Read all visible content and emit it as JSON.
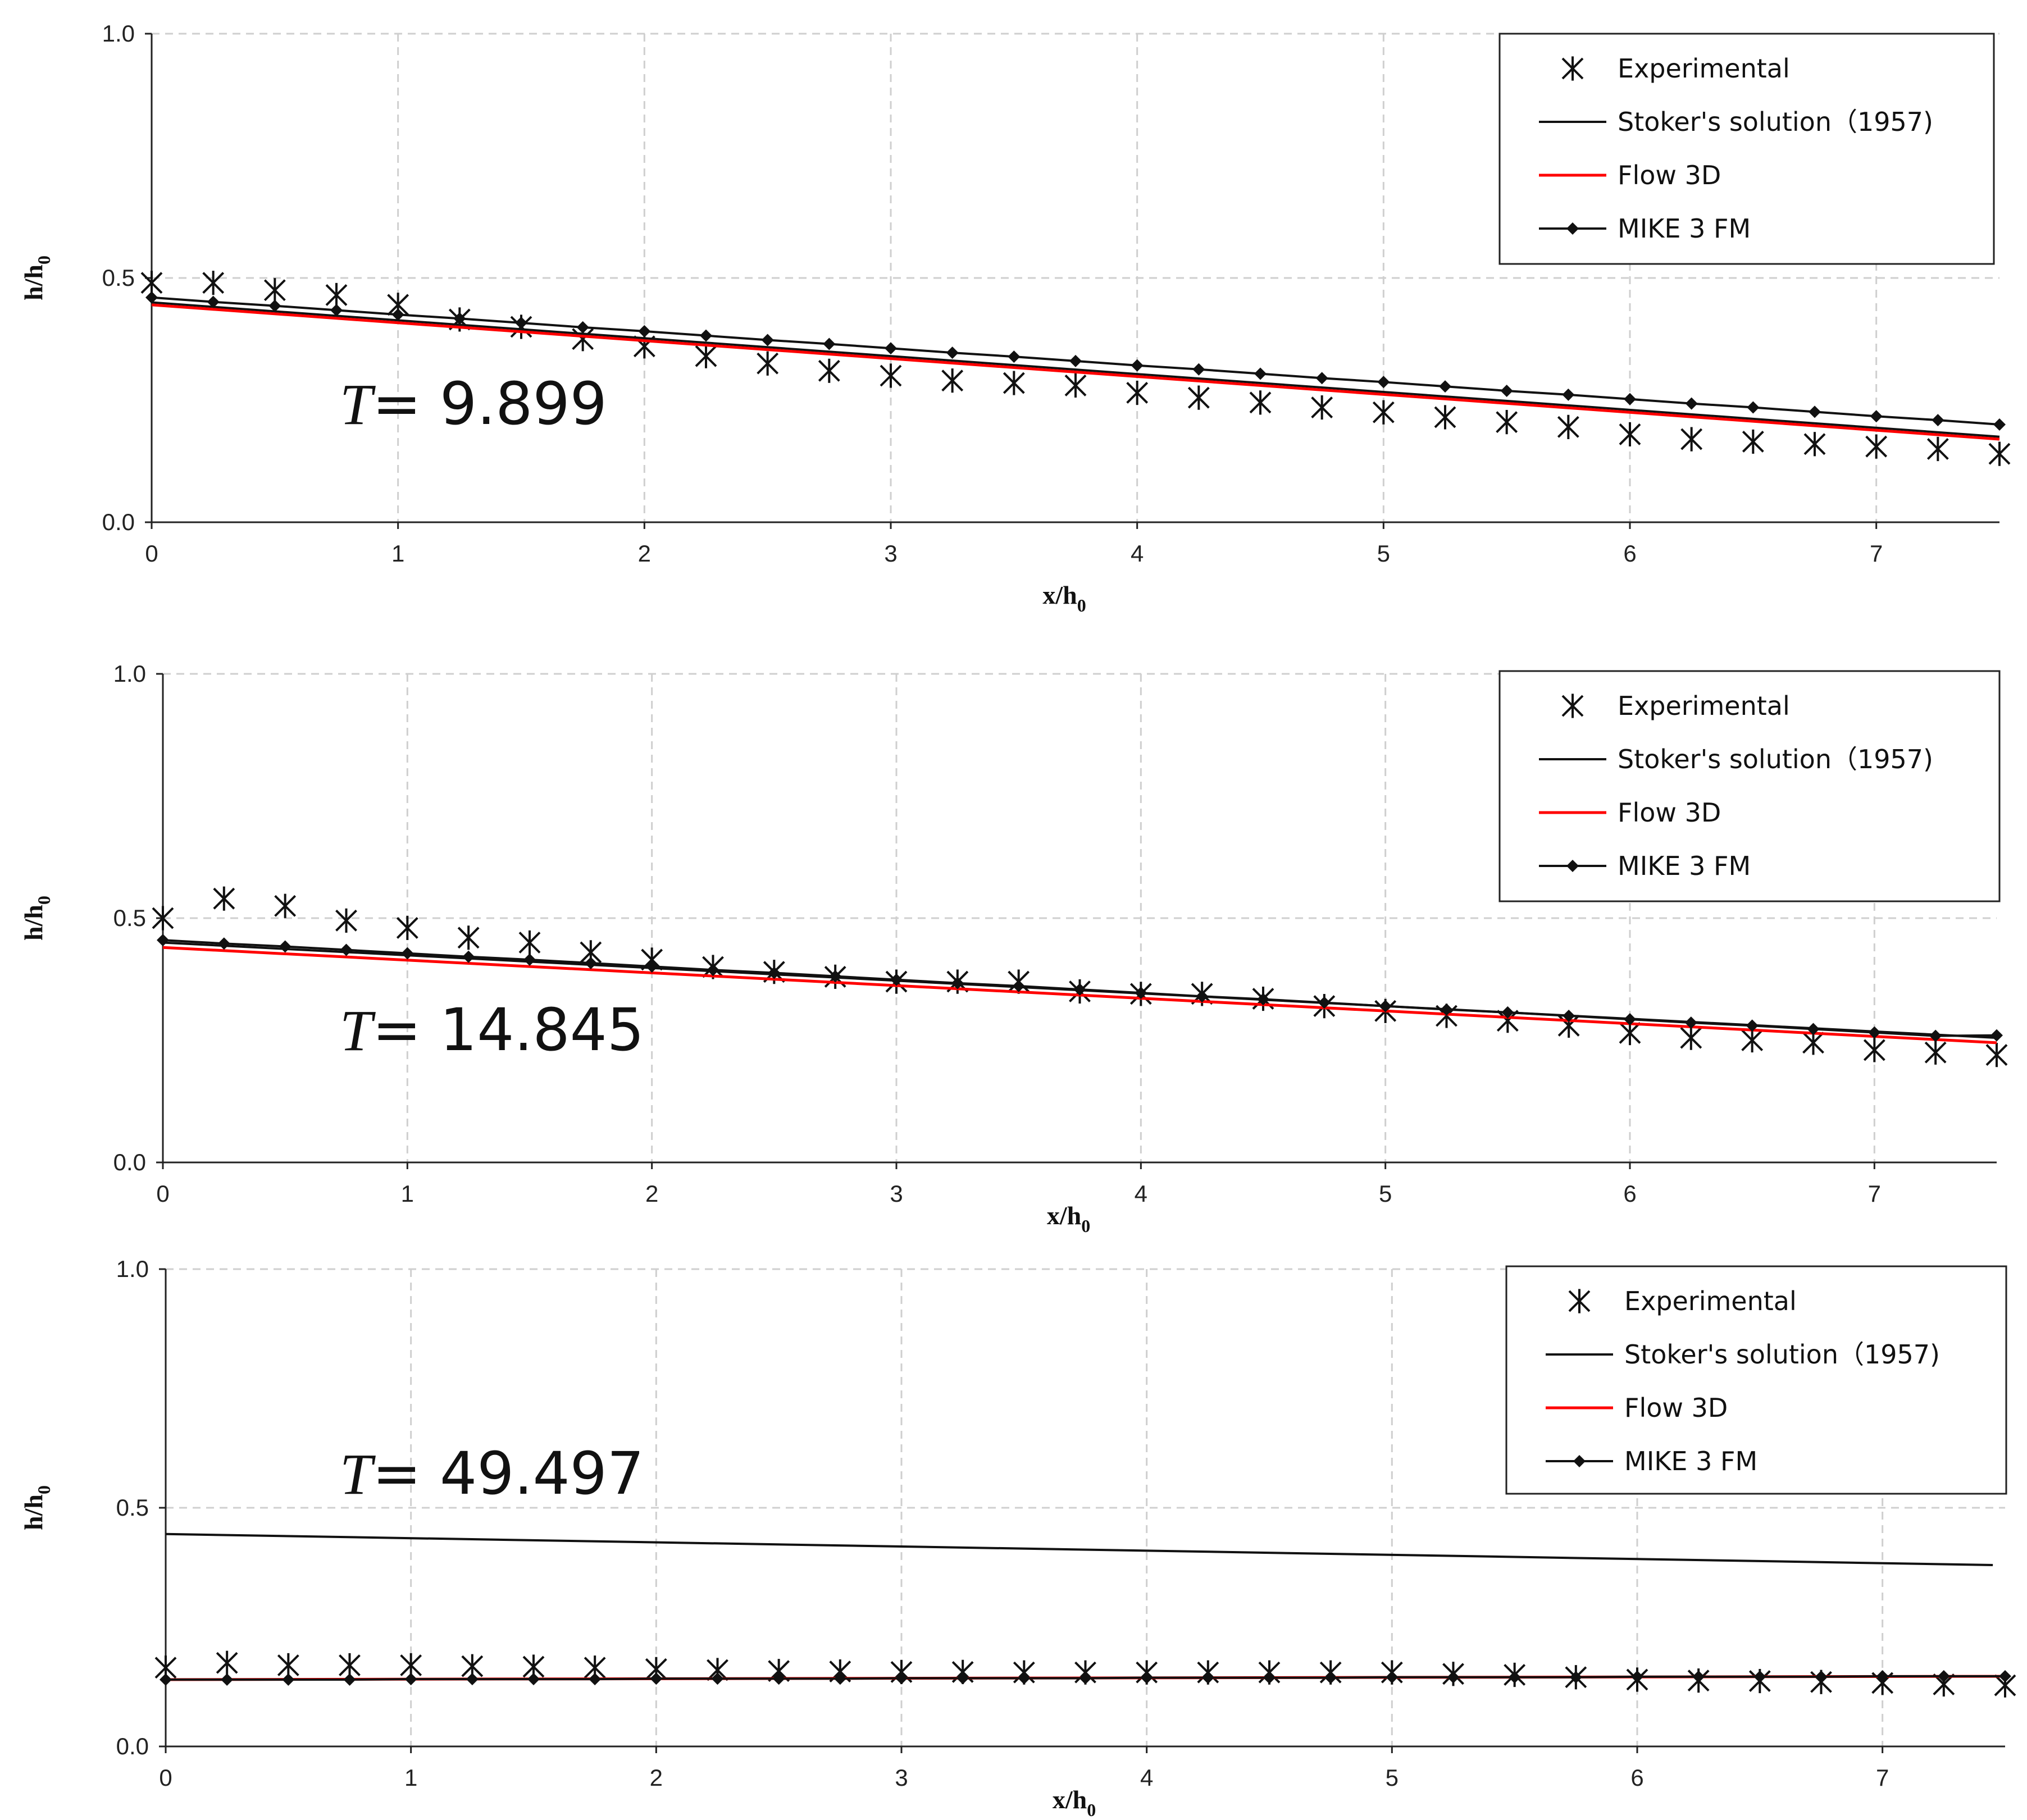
{
  "chart_data": [
    {
      "type": "line",
      "time_label": "9.899",
      "xlabel": "x/h",
      "xlabel_sub": "0",
      "ylabel": "h/h",
      "ylabel_sub": "0",
      "xlim": [
        0,
        7.5
      ],
      "ylim": [
        0,
        1
      ],
      "xticks": [
        "0",
        "1",
        "2",
        "3",
        "4",
        "5",
        "6",
        "7"
      ],
      "yticks": [
        "0.0",
        "0.5",
        "1.0"
      ],
      "grid": true,
      "legend_position": "top-right",
      "series": [
        {
          "name": "Experimental",
          "marker": "asterisk",
          "color": "#111111",
          "x": [
            0,
            0.25,
            0.5,
            0.75,
            1,
            1.25,
            1.5,
            1.75,
            2,
            2.25,
            2.5,
            2.75,
            3,
            3.25,
            3.5,
            3.75,
            4,
            4.25,
            4.5,
            4.75,
            5,
            5.25,
            5.5,
            5.75,
            6,
            6.25,
            6.5,
            6.75,
            7,
            7.25,
            7.5
          ],
          "y": [
            0.49,
            0.49,
            0.475,
            0.465,
            0.445,
            0.415,
            0.4,
            0.375,
            0.36,
            0.34,
            0.325,
            0.31,
            0.3,
            0.29,
            0.285,
            0.28,
            0.265,
            0.255,
            0.245,
            0.235,
            0.225,
            0.215,
            0.205,
            0.195,
            0.18,
            0.17,
            0.165,
            0.16,
            0.155,
            0.15,
            0.14
          ]
        },
        {
          "name": "Stoker's solution（1957)",
          "marker": "none",
          "color": "#111111",
          "x": [
            0,
            7.5
          ],
          "y": [
            0.45,
            0.175
          ]
        },
        {
          "name": "Flow 3D",
          "marker": "none",
          "color": "#ff0000",
          "x": [
            0,
            7.5
          ],
          "y": [
            0.445,
            0.17
          ]
        },
        {
          "name": "MIKE 3 FM",
          "marker": "diamond",
          "color": "#111111",
          "x": [
            0,
            0.25,
            0.5,
            0.75,
            1,
            1.25,
            1.5,
            1.75,
            2,
            2.25,
            2.5,
            2.75,
            3,
            3.25,
            3.5,
            3.75,
            4,
            4.25,
            4.5,
            4.75,
            5,
            5.25,
            5.5,
            5.75,
            6,
            6.25,
            6.5,
            6.75,
            7,
            7.25,
            7.5
          ],
          "y": [
            0.46,
            0.451,
            0.443,
            0.434,
            0.425,
            0.417,
            0.408,
            0.399,
            0.391,
            0.382,
            0.373,
            0.365,
            0.356,
            0.347,
            0.339,
            0.33,
            0.321,
            0.313,
            0.304,
            0.295,
            0.287,
            0.278,
            0.269,
            0.261,
            0.252,
            0.243,
            0.235,
            0.226,
            0.217,
            0.209,
            0.2
          ]
        }
      ]
    },
    {
      "type": "line",
      "time_label": "14.845",
      "xlabel": "x/h",
      "xlabel_sub": "0",
      "ylabel": "h/h",
      "ylabel_sub": "0",
      "xlim": [
        0,
        7.5
      ],
      "ylim": [
        0,
        1
      ],
      "xticks": [
        "0",
        "1",
        "2",
        "3",
        "4",
        "5",
        "6",
        "7"
      ],
      "yticks": [
        "0.0",
        "0.5",
        "1.0"
      ],
      "grid": true,
      "legend_position": "top-right",
      "series": [
        {
          "name": "Experimental",
          "marker": "asterisk",
          "color": "#111111",
          "x": [
            0,
            0.25,
            0.5,
            0.75,
            1,
            1.25,
            1.5,
            1.75,
            2,
            2.25,
            2.5,
            2.75,
            3,
            3.25,
            3.5,
            3.75,
            4,
            4.25,
            4.5,
            4.75,
            5,
            5.25,
            5.5,
            5.75,
            6,
            6.25,
            6.5,
            6.75,
            7,
            7.25,
            7.5
          ],
          "y": [
            0.5,
            0.54,
            0.525,
            0.495,
            0.48,
            0.46,
            0.45,
            0.43,
            0.415,
            0.4,
            0.39,
            0.38,
            0.37,
            0.37,
            0.37,
            0.35,
            0.345,
            0.345,
            0.335,
            0.32,
            0.31,
            0.3,
            0.29,
            0.28,
            0.265,
            0.255,
            0.25,
            0.245,
            0.23,
            0.225,
            0.22
          ]
        },
        {
          "name": "Stoker's solution（1957)",
          "marker": "none",
          "color": "#111111",
          "x": [
            0,
            7.5
          ],
          "y": [
            0.45,
            0.255
          ]
        },
        {
          "name": "Flow 3D",
          "marker": "none",
          "color": "#ff0000",
          "x": [
            0,
            7.5
          ],
          "y": [
            0.44,
            0.245
          ]
        },
        {
          "name": "MIKE 3 FM",
          "marker": "diamond",
          "color": "#111111",
          "x": [
            0,
            0.25,
            0.5,
            0.75,
            1,
            1.25,
            1.5,
            1.75,
            2,
            2.25,
            2.5,
            2.75,
            3,
            3.25,
            3.5,
            3.75,
            4,
            4.25,
            4.5,
            4.75,
            5,
            5.25,
            5.5,
            5.75,
            6,
            6.25,
            6.5,
            6.75,
            7,
            7.25,
            7.5
          ],
          "y": [
            0.455,
            0.448,
            0.442,
            0.435,
            0.428,
            0.421,
            0.415,
            0.408,
            0.401,
            0.394,
            0.388,
            0.381,
            0.374,
            0.367,
            0.361,
            0.354,
            0.347,
            0.34,
            0.334,
            0.327,
            0.32,
            0.313,
            0.307,
            0.3,
            0.293,
            0.286,
            0.28,
            0.273,
            0.266,
            0.259,
            0.26
          ]
        }
      ]
    },
    {
      "type": "line",
      "time_label": "49.497",
      "xlabel": "x/h",
      "xlabel_sub": "0",
      "ylabel": "h/h",
      "ylabel_sub": "0",
      "xlim": [
        0,
        7.5
      ],
      "ylim": [
        0,
        1
      ],
      "xticks": [
        "0",
        "1",
        "2",
        "3",
        "4",
        "5",
        "6",
        "7"
      ],
      "yticks": [
        "0.0",
        "0.5",
        "1.0"
      ],
      "grid": true,
      "legend_position": "top-right",
      "series": [
        {
          "name": "Experimental",
          "marker": "asterisk",
          "color": "#111111",
          "x": [
            0,
            0.25,
            0.5,
            0.75,
            1,
            1.25,
            1.5,
            1.75,
            2,
            2.25,
            2.5,
            2.75,
            3,
            3.25,
            3.5,
            3.75,
            4,
            4.25,
            4.5,
            4.75,
            5,
            5.25,
            5.5,
            5.75,
            6,
            6.25,
            6.5,
            6.75,
            7,
            7.25,
            7.5
          ],
          "y": [
            0.165,
            0.175,
            0.17,
            0.17,
            0.17,
            0.168,
            0.167,
            0.165,
            0.162,
            0.16,
            0.158,
            0.157,
            0.156,
            0.156,
            0.155,
            0.155,
            0.155,
            0.155,
            0.155,
            0.155,
            0.155,
            0.152,
            0.15,
            0.145,
            0.14,
            0.138,
            0.137,
            0.135,
            0.133,
            0.13,
            0.128
          ]
        },
        {
          "name": "Stoker's solution（1957)",
          "marker": "none",
          "color": "#111111",
          "x": [
            0,
            7.45
          ],
          "y": [
            0.445,
            0.38
          ]
        },
        {
          "name": "Flow 3D",
          "marker": "none",
          "color": "#ff0000",
          "x": [
            0,
            7.5
          ],
          "y": [
            0.14,
            0.147
          ]
        },
        {
          "name": "MIKE 3 FM",
          "marker": "diamond",
          "color": "#111111",
          "x": [
            0,
            0.25,
            0.5,
            0.75,
            1,
            1.25,
            1.5,
            1.75,
            2,
            2.25,
            2.5,
            2.75,
            3,
            3.25,
            3.5,
            3.75,
            4,
            4.25,
            4.5,
            4.75,
            5,
            5.25,
            5.5,
            5.75,
            6,
            6.25,
            6.5,
            6.75,
            7,
            7.25,
            7.5
          ],
          "y": [
            0.14,
            0.14,
            0.14,
            0.14,
            0.141,
            0.141,
            0.141,
            0.141,
            0.142,
            0.142,
            0.142,
            0.142,
            0.143,
            0.143,
            0.143,
            0.143,
            0.144,
            0.144,
            0.144,
            0.144,
            0.145,
            0.145,
            0.145,
            0.145,
            0.146,
            0.146,
            0.146,
            0.146,
            0.147,
            0.147,
            0.147
          ]
        }
      ]
    }
  ]
}
